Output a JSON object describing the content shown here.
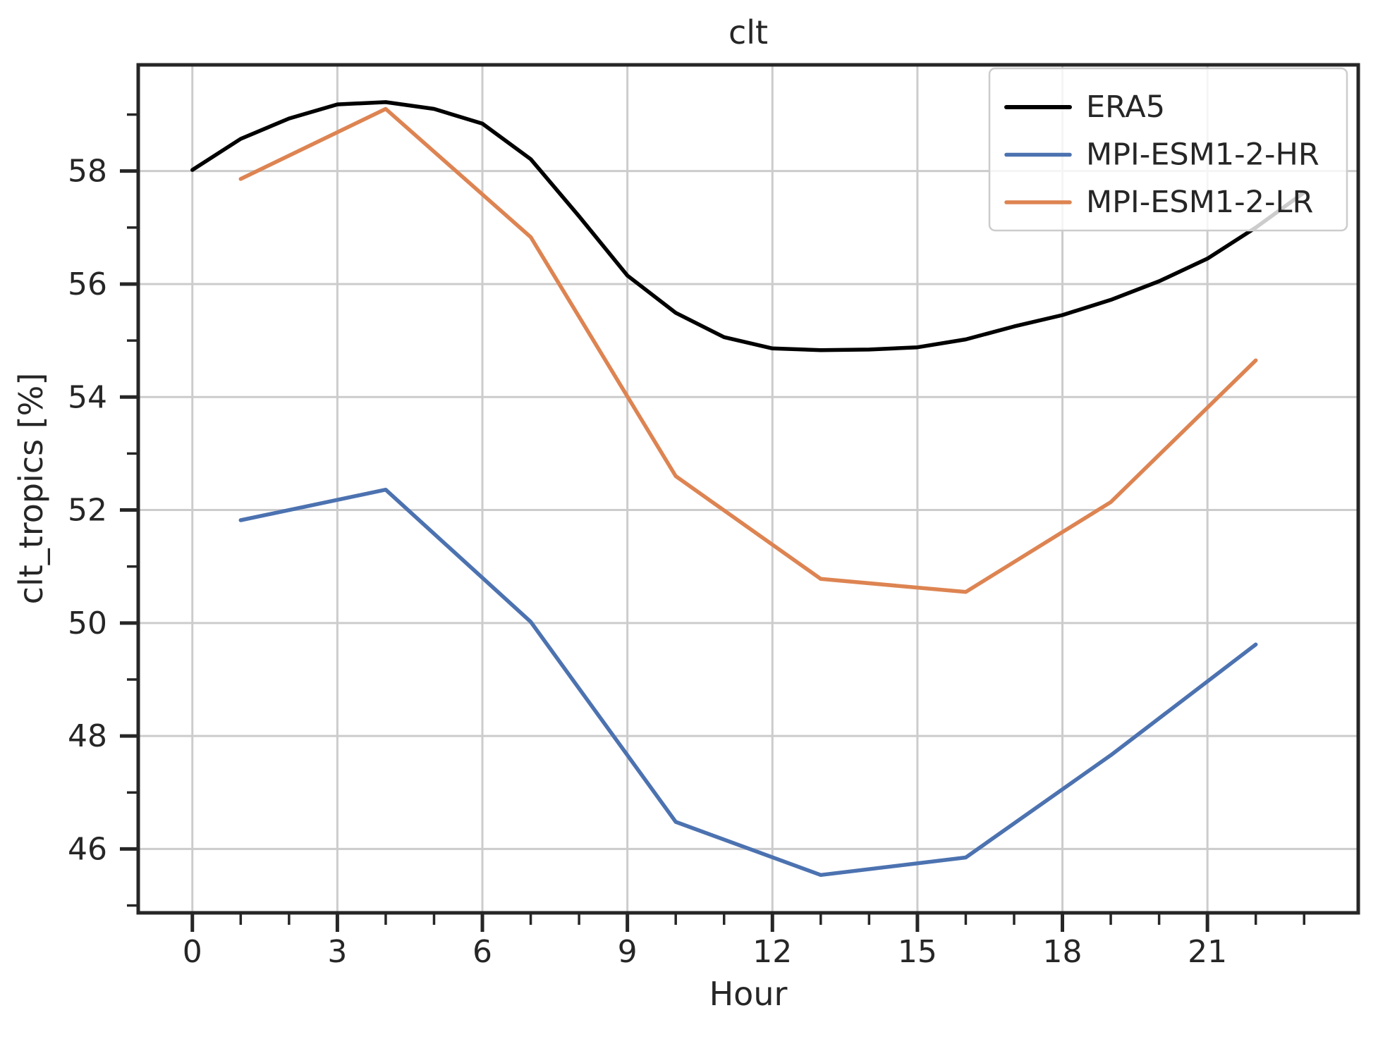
{
  "chart_data": {
    "type": "line",
    "title": "clt",
    "xlabel": "Hour",
    "ylabel": "clt_tropics [%]",
    "x_range": [
      -1.12,
      24.12
    ],
    "y_range": [
      44.87,
      59.88
    ],
    "x_major_ticks": [
      0,
      3,
      6,
      9,
      12,
      15,
      18,
      21
    ],
    "x_minor_ticks": [
      1,
      2,
      4,
      5,
      7,
      8,
      10,
      11,
      13,
      14,
      16,
      17,
      19,
      20,
      22,
      23
    ],
    "y_major_ticks": [
      46,
      48,
      50,
      52,
      54,
      56,
      58
    ],
    "y_minor_ticks": [
      45,
      47,
      49,
      51,
      53,
      55,
      57,
      59
    ],
    "grid": true,
    "legend_position": "upper right",
    "colors": {
      "background": "#ffffff",
      "grid": "#cccccc",
      "spine": "#262626",
      "text": "#262626",
      "legend_border": "#cccccc"
    },
    "series": [
      {
        "name": "ERA5",
        "color": "#000000",
        "x": [
          0,
          1,
          2,
          3,
          4,
          5,
          6,
          7,
          8,
          9,
          10,
          11,
          12,
          13,
          14,
          15,
          16,
          17,
          18,
          19,
          20,
          21,
          22,
          23
        ],
        "values": [
          58.02,
          58.57,
          58.93,
          59.18,
          59.22,
          59.1,
          58.84,
          58.21,
          57.2,
          56.15,
          55.49,
          55.06,
          54.86,
          54.83,
          54.84,
          54.88,
          55.02,
          55.25,
          55.45,
          55.72,
          56.05,
          56.45,
          57.0,
          57.62
        ]
      },
      {
        "name": "MPI-ESM1-2-HR",
        "color": "#4C72B0",
        "x": [
          1,
          4,
          7,
          10,
          13,
          16,
          19,
          22
        ],
        "values": [
          51.82,
          52.36,
          50.02,
          46.48,
          45.54,
          45.85,
          47.66,
          49.62
        ]
      },
      {
        "name": "MPI-ESM1-2-LR",
        "color": "#DD8452",
        "x": [
          1,
          4,
          7,
          10,
          13,
          16,
          19,
          22
        ],
        "values": [
          57.86,
          59.1,
          56.83,
          52.6,
          50.78,
          50.55,
          52.14,
          54.65
        ]
      }
    ]
  }
}
